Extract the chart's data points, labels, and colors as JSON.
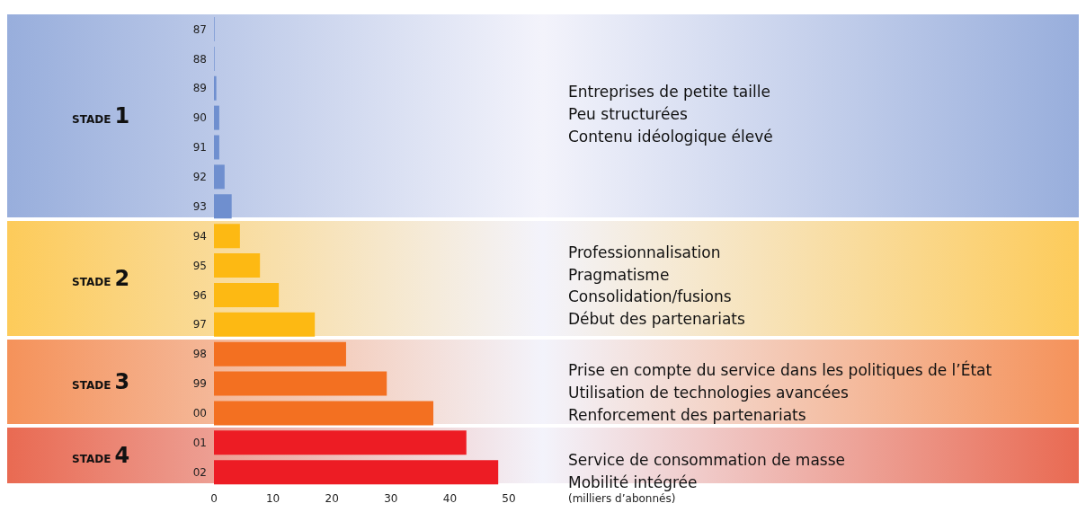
{
  "chart_data": {
    "type": "bar",
    "orientation": "horizontal",
    "categories": [
      "87",
      "88",
      "89",
      "90",
      "91",
      "92",
      "93",
      "94",
      "95",
      "96",
      "97",
      "98",
      "99",
      "00",
      "01",
      "02"
    ],
    "values": [
      0.1,
      0.1,
      0.4,
      0.9,
      0.9,
      1.8,
      3.0,
      4.4,
      7.8,
      11.0,
      17.1,
      22.4,
      29.3,
      37.2,
      42.8,
      48.2
    ],
    "colors": [
      "#6f8fcf",
      "#6f8fcf",
      "#6f8fcf",
      "#6f8fcf",
      "#6f8fcf",
      "#6f8fcf",
      "#6f8fcf",
      "#fdb913",
      "#fdb913",
      "#fdb913",
      "#fdb913",
      "#f37021",
      "#f37021",
      "#f37021",
      "#ed1c24",
      "#ed1c24"
    ],
    "xlim": [
      0,
      50
    ],
    "xticks": [
      0,
      10,
      20,
      30,
      40,
      50
    ],
    "grid": false,
    "xlabel": "(milliers d’abonnés)",
    "bands": [
      {
        "axis": "y",
        "from": "87",
        "to": "93",
        "label": "STADE 1",
        "color": "#98aedc"
      },
      {
        "axis": "y",
        "from": "94",
        "to": "97",
        "label": "STADE 2",
        "color": "#fdcb5a"
      },
      {
        "axis": "y",
        "from": "98",
        "to": "00",
        "label": "STADE 3",
        "color": "#f5925a"
      },
      {
        "axis": "y",
        "from": "01",
        "to": "02",
        "label": "STADE 4",
        "color": "#e96a52"
      }
    ],
    "annotations": [
      "Entreprises de petite taille",
      "Peu structurées",
      "Contenu idéologique élevé",
      "Professionnalisation",
      "Pragmatisme",
      "Consolidation/fusions",
      "Début des partenariats",
      "Prise en compte du service dans les politiques de l’État",
      "Utilisation de technologies avancées",
      "Renforcement des partenariats",
      "Service de consommation de masse",
      "Mobilité intégrée"
    ]
  }
}
